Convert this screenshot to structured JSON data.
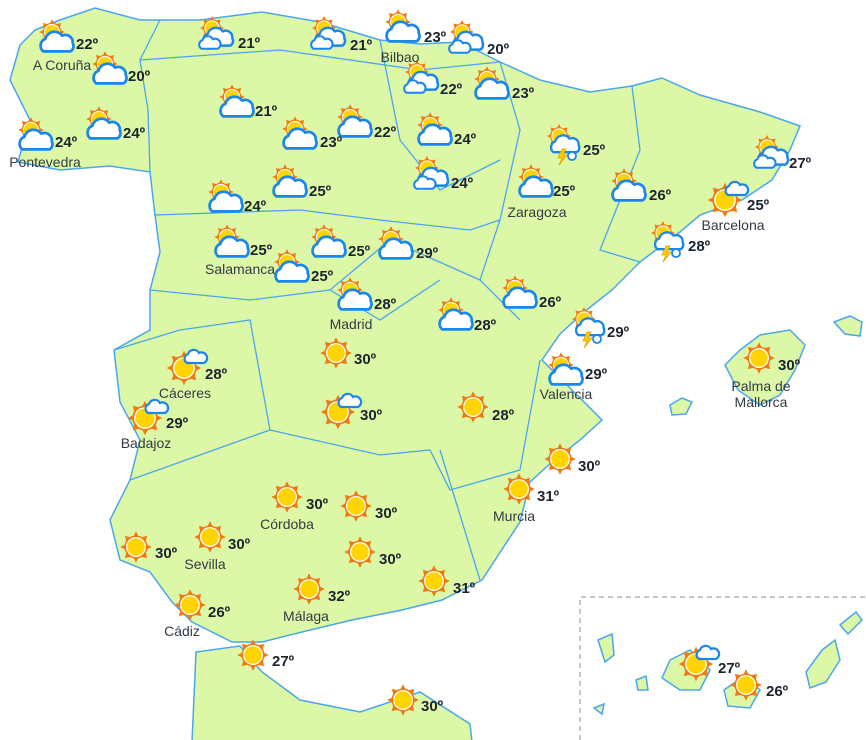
{
  "colors": {
    "land": "#dcf8a6",
    "border": "#4aa6ee",
    "sun": "#ffd400",
    "sun_rays": "#f07a10",
    "cloud_stroke": "#1b86ec",
    "temp_text": "#1c2430"
  },
  "legend_icons": {
    "sun": "sun-icon",
    "partly": "partly-cloudy-icon",
    "cloudy": "cloudy-icon",
    "sun_cloud": "mostly-sunny-icon",
    "storm": "thunderstorm-icon"
  },
  "stations": [
    {
      "icon": "partly",
      "temp": "22º",
      "city": "A Coruña"
    },
    {
      "icon": "partly",
      "temp": "20º"
    },
    {
      "icon": "cloudy",
      "temp": "21º"
    },
    {
      "icon": "cloudy",
      "temp": "21º"
    },
    {
      "icon": "partly",
      "temp": "23º",
      "city": "Bilbao"
    },
    {
      "icon": "cloudy",
      "temp": "20º"
    },
    {
      "icon": "cloudy",
      "temp": "22º"
    },
    {
      "icon": "partly",
      "temp": "23º"
    },
    {
      "icon": "partly",
      "temp": "24º",
      "city": "Pontevedra"
    },
    {
      "icon": "partly",
      "temp": "24º"
    },
    {
      "icon": "partly",
      "temp": "21º"
    },
    {
      "icon": "partly",
      "temp": "23º"
    },
    {
      "icon": "partly",
      "temp": "22º"
    },
    {
      "icon": "partly",
      "temp": "24º"
    },
    {
      "icon": "cloudy",
      "temp": "24º"
    },
    {
      "icon": "storm",
      "temp": "25º"
    },
    {
      "icon": "partly",
      "temp": "25º",
      "city": "Zaragoza"
    },
    {
      "icon": "partly",
      "temp": "26º"
    },
    {
      "icon": "cloudy",
      "temp": "27º"
    },
    {
      "icon": "sun_cloud",
      "temp": "25º",
      "city": "Barcelona"
    },
    {
      "icon": "storm",
      "temp": "28º"
    },
    {
      "icon": "partly",
      "temp": "24º"
    },
    {
      "icon": "partly",
      "temp": "25º"
    },
    {
      "icon": "partly",
      "temp": "25º",
      "city": "Salamanca"
    },
    {
      "icon": "partly",
      "temp": "25º"
    },
    {
      "icon": "partly",
      "temp": "29º"
    },
    {
      "icon": "partly",
      "temp": "25º"
    },
    {
      "icon": "partly",
      "temp": "28º",
      "city": "Madrid"
    },
    {
      "icon": "partly",
      "temp": "28º"
    },
    {
      "icon": "partly",
      "temp": "26º"
    },
    {
      "icon": "storm",
      "temp": "29º"
    },
    {
      "icon": "sun_cloud",
      "temp": "28º",
      "city": "Cáceres"
    },
    {
      "icon": "sun_cloud",
      "temp": "29º",
      "city": "Badajoz"
    },
    {
      "icon": "sun",
      "temp": "30º"
    },
    {
      "icon": "sun_cloud",
      "temp": "30º"
    },
    {
      "icon": "sun",
      "temp": "28º"
    },
    {
      "icon": "partly",
      "temp": "29º",
      "city": "Valencia"
    },
    {
      "icon": "sun",
      "temp": "30º",
      "city": "Palma de Mallorca"
    },
    {
      "icon": "sun",
      "temp": "30º"
    },
    {
      "icon": "sun",
      "temp": "31º",
      "city": "Murcia"
    },
    {
      "icon": "sun",
      "temp": "30º",
      "city": "Córdoba"
    },
    {
      "icon": "sun",
      "temp": "30º"
    },
    {
      "icon": "sun",
      "temp": "30º",
      "city": "Sevilla"
    },
    {
      "icon": "sun",
      "temp": "30º"
    },
    {
      "icon": "sun",
      "temp": "30º"
    },
    {
      "icon": "sun",
      "temp": "31º"
    },
    {
      "icon": "sun",
      "temp": "26º",
      "city": "Cádiz"
    },
    {
      "icon": "sun",
      "temp": "32º",
      "city": "Málaga"
    },
    {
      "icon": "sun",
      "temp": "27º"
    },
    {
      "icon": "sun",
      "temp": "30º"
    },
    {
      "icon": "sun_cloud",
      "temp": "27º"
    },
    {
      "icon": "sun",
      "temp": "26º"
    }
  ]
}
